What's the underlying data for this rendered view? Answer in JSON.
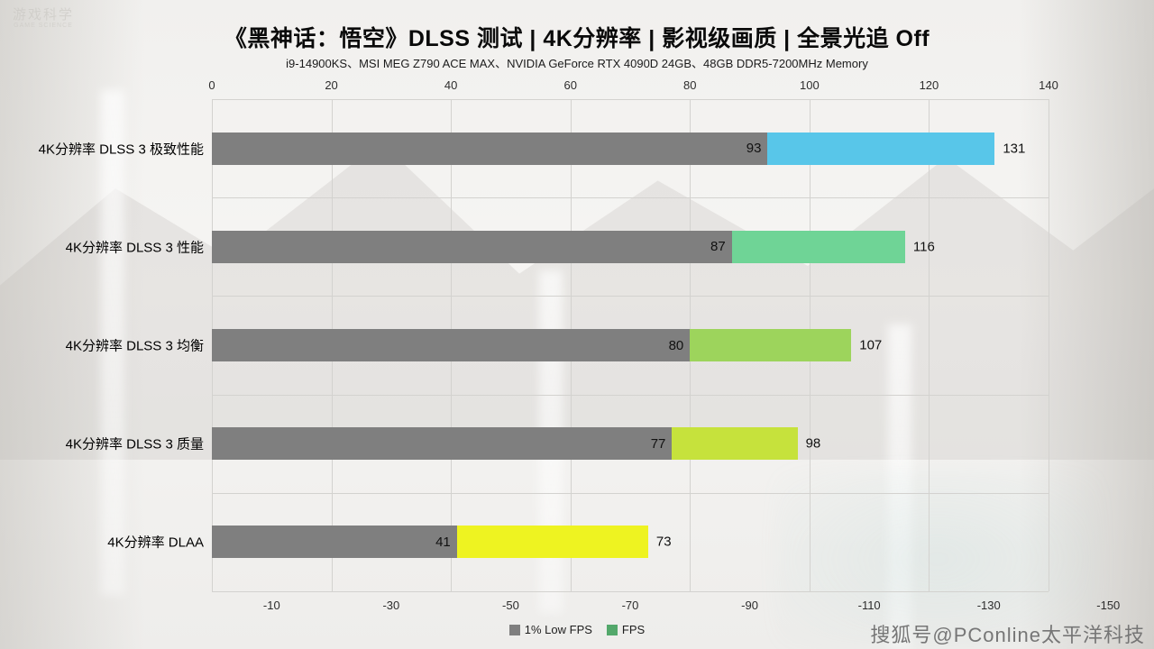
{
  "header": {
    "title": "《黑神话：悟空》DLSS 测试 | 4K分辨率 | 影视级画质 | 全景光追 Off",
    "subtitle": "i9-14900KS、MSI MEG Z790 ACE MAX、NVIDIA GeForce RTX 4090D 24GB、48GB DDR5-7200MHz Memory"
  },
  "watermark": {
    "logo": "游戏科学",
    "logo_sub": "GAME SCIENCE",
    "footer": "搜狐号@PConline太平洋科技"
  },
  "chart_data": {
    "type": "bar",
    "orientation": "horizontal",
    "title": "《黑神话：悟空》DLSS 测试 | 4K分辨率 | 影视级画质 | 全景光追 Off",
    "subtitle": "i9-14900KS、MSI MEG Z790 ACE MAX、NVIDIA GeForce RTX 4090D 24GB、48GB DDR5-7200MHz Memory",
    "categories": [
      "4K分辨率 DLSS 3 极致性能",
      "4K分辨率 DLSS 3 性能",
      "4K分辨率 DLSS 3 均衡",
      "4K分辨率 DLSS 3 质量",
      "4K分辨率 DLAA"
    ],
    "series": [
      {
        "name": "1% Low FPS",
        "color": "#7f7f7f",
        "values": [
          93,
          87,
          80,
          77,
          41
        ]
      },
      {
        "name": "FPS",
        "colors": [
          "#58c6e9",
          "#6fd496",
          "#9dd45c",
          "#c6e23c",
          "#eef321"
        ],
        "values": [
          131,
          116,
          107,
          98,
          73
        ]
      }
    ],
    "xlim": [
      0,
      140
    ],
    "grid": true,
    "top_axis_ticks": [
      0,
      20,
      40,
      60,
      80,
      100,
      120,
      140
    ],
    "bottom_axis_ticks": [
      "-10",
      "-30",
      "-50",
      "-70",
      "-90",
      "-110",
      "-130",
      "-150"
    ],
    "legend": [
      {
        "label": "1% Low FPS",
        "color": "#7f7f7f"
      },
      {
        "label": "FPS",
        "color": "#53a86b"
      }
    ],
    "legend_position": "bottom"
  }
}
